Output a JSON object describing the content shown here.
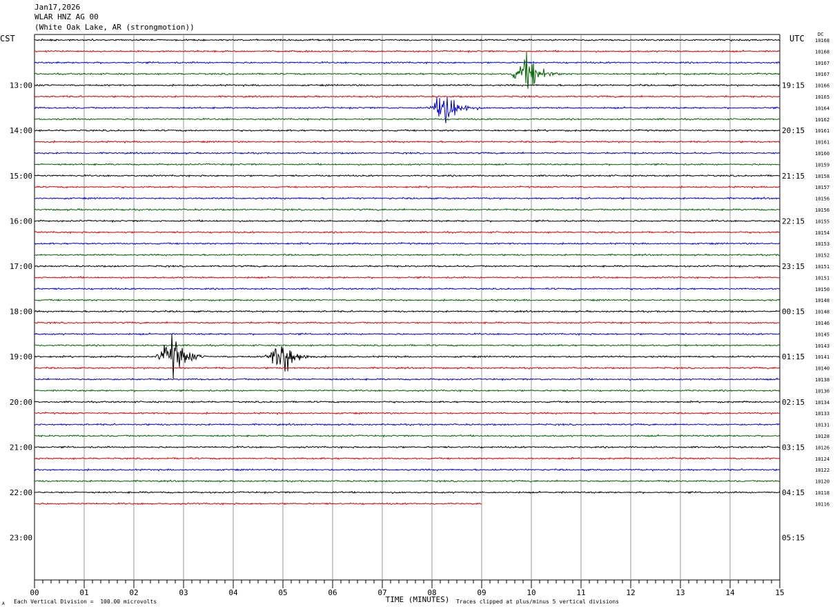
{
  "header": {
    "date": "Jan17,2026",
    "station": "WLAR HNZ AG 00",
    "location": "(White Oak Lake, AR (strongmotion))"
  },
  "left_tz": "CST",
  "right_tz": "UTC",
  "dc_label": "DC",
  "footer": {
    "scale_note": "Each Vertical Division =  100.00 microvolts",
    "clip_note": "Traces clipped at plus/minus 5 vertical divisions",
    "corner_mark": "A"
  },
  "chart_data": {
    "type": "line",
    "title": "",
    "xlabel": "TIME (MINUTES)",
    "xlim": [
      0,
      15
    ],
    "x_ticks": [
      "00",
      "01",
      "02",
      "03",
      "04",
      "05",
      "06",
      "07",
      "08",
      "09",
      "10",
      "11",
      "12",
      "13",
      "14",
      "15"
    ],
    "hour_labels_local": [
      "13:00",
      "14:00",
      "15:00",
      "16:00",
      "17:00",
      "18:00",
      "19:00",
      "20:00",
      "21:00",
      "22:00",
      "23:00"
    ],
    "hour_labels_utc": [
      "19:15",
      "20:15",
      "21:15",
      "22:15",
      "23:15",
      "00:15",
      "01:15",
      "02:15",
      "03:15",
      "04:15",
      "05:15"
    ],
    "trace_colors": [
      "#000000",
      "#e00000",
      "#0000dd",
      "#006400"
    ],
    "rows_per_hour": 4,
    "traces_plotted": 42,
    "last_trace_end_minute": 9.0,
    "dc_offsets": [
      "10168",
      "10168",
      "10167",
      "10167",
      "10166",
      "10165",
      "10164",
      "10162",
      "10161",
      "10161",
      "10160",
      "10159",
      "10158",
      "10157",
      "10156",
      "10156",
      "10155",
      "10154",
      "10153",
      "10152",
      "10151",
      "10151",
      "10150",
      "10148",
      "10148",
      "10146",
      "10145",
      "10143",
      "10141",
      "10140",
      "10138",
      "10136",
      "10134",
      "10133",
      "10131",
      "10128",
      "10126",
      "10124",
      "10122",
      "10120",
      "10118",
      "10116"
    ],
    "events": [
      {
        "name": "green burst",
        "trace": 3,
        "minute": 9.88,
        "amplitude_div": 5
      },
      {
        "name": "blue burst",
        "trace": 6,
        "minute": 8.25,
        "amplitude_div": 5
      },
      {
        "name": "black burst A",
        "trace": 28,
        "minute": 2.75,
        "amplitude_div": 5
      },
      {
        "name": "black burst B",
        "trace": 28,
        "minute": 4.95,
        "amplitude_div": 5
      }
    ]
  }
}
